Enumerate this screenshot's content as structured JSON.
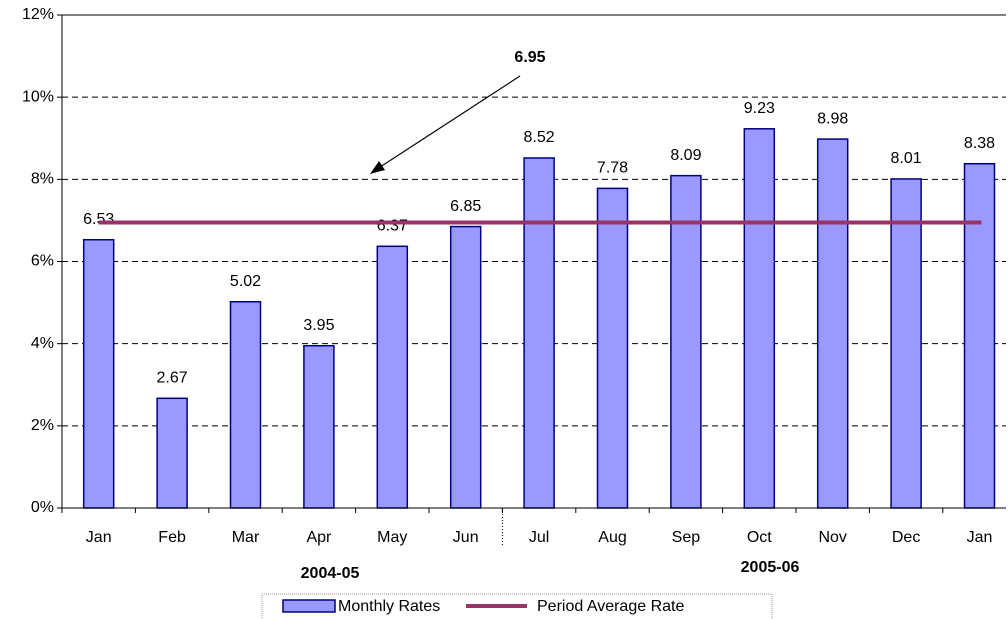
{
  "chart_data": {
    "type": "bar",
    "categories": [
      "Jan",
      "Feb",
      "Mar",
      "Apr",
      "May",
      "Jun",
      "Jul",
      "Aug",
      "Sep",
      "Oct",
      "Nov",
      "Dec",
      "Jan"
    ],
    "series": [
      {
        "name": "Monthly Rates",
        "color": "#9999ff",
        "values": [
          6.53,
          2.67,
          5.02,
          3.95,
          6.37,
          6.85,
          8.52,
          7.78,
          8.09,
          9.23,
          8.98,
          8.01,
          8.38
        ]
      }
    ],
    "average": {
      "name": "Period Average Rate",
      "color": "#993366",
      "value": 6.95
    },
    "groups": [
      "2004-05",
      "2005-06"
    ],
    "ylim": [
      0,
      12
    ],
    "yticks": [
      {
        "value": 0,
        "label": "0%"
      },
      {
        "value": 2,
        "label": "2%"
      },
      {
        "value": 4,
        "label": "4%"
      },
      {
        "value": 6,
        "label": "6%"
      },
      {
        "value": 8,
        "label": "8%"
      },
      {
        "value": 10,
        "label": "10%"
      },
      {
        "value": 12,
        "label": "12%"
      }
    ],
    "grid": true
  }
}
